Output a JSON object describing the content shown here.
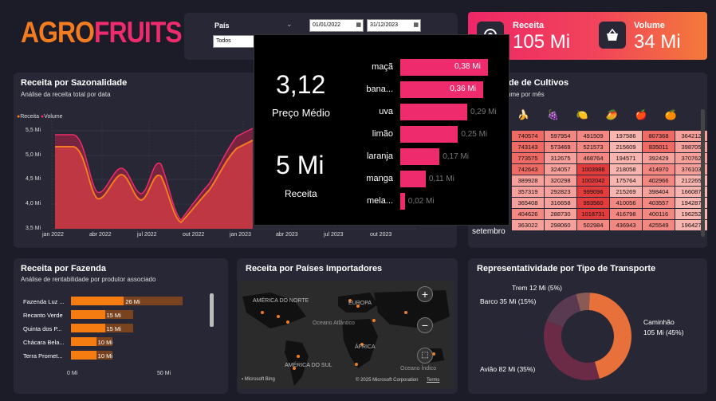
{
  "logo": {
    "part1": "AGRO",
    "part2": "FRUITS"
  },
  "filters": {
    "country_label": "País",
    "country_value": "Todos",
    "date_start": "01/01/2022",
    "date_end": "31/12/2023"
  },
  "kpis": {
    "revenue_label": "Receita",
    "revenue_value": "105 Mi",
    "volume_label": "Volume",
    "volume_value": "34 Mi",
    "revenue_icon": "money-icon",
    "volume_icon": "basket-icon"
  },
  "seasonality": {
    "title": "Receita por Sazonalidade",
    "subtitle": "Análise da receita total por data",
    "legend": [
      "Receita",
      "Volume"
    ],
    "yticks": [
      "5,5 Mi",
      "5,0 Mi",
      "4,5 Mi",
      "4,0 Mi",
      "3,5 Mi"
    ],
    "xticks": [
      "jan 2022",
      "abr 2022",
      "jul 2022",
      "out 2022",
      "jan 2023",
      "abr 2023",
      "jul 2023",
      "out 2023"
    ]
  },
  "tooltip": {
    "avg_price_value": "3,12",
    "avg_price_label": "Preço Médio",
    "revenue_value": "5 Mi",
    "revenue_label": "Receita",
    "items": [
      {
        "label": "maçã",
        "value": "0,38 Mi"
      },
      {
        "label": "bana...",
        "value": "0,36 Mi"
      },
      {
        "label": "uva",
        "value": "0,29 Mi"
      },
      {
        "label": "limão",
        "value": "0,25 Mi"
      },
      {
        "label": "laranja",
        "value": "0,17 Mi"
      },
      {
        "label": "manga",
        "value": "0,11 Mi"
      },
      {
        "label": "mela...",
        "value": "0,02 Mi"
      }
    ]
  },
  "crops": {
    "title": "lidade de Cultivos",
    "subtitle": "o volume por mês",
    "row_label": "setembro",
    "rows": [
      [
        "740574",
        "597954",
        "491509",
        "197586",
        "807368",
        "364212"
      ],
      [
        "743143",
        "573469",
        "521573",
        "215609",
        "835011",
        "398705"
      ],
      [
        "773575",
        "312675",
        "468764",
        "194571",
        "392429",
        "370762"
      ],
      [
        "742643",
        "324057",
        "1003988",
        "218058",
        "414970",
        "376103"
      ],
      [
        "389928",
        "320298",
        "1002042",
        "175764",
        "402966",
        "212265"
      ],
      [
        "357319",
        "292823",
        "999096",
        "215269",
        "398404",
        "166087"
      ],
      [
        "365408",
        "316658",
        "993560",
        "410056",
        "403557",
        "194287"
      ],
      [
        "404626",
        "288730",
        "1018731",
        "416798",
        "400116",
        "196252"
      ],
      [
        "363022",
        "298060",
        "502984",
        "436943",
        "425549",
        "196427"
      ]
    ]
  },
  "farm": {
    "title": "Receita por Fazenda",
    "subtitle": "Análise de rentabilidade por produtor associado",
    "items": [
      {
        "label": "Fazenda Luz ...",
        "value": "26 Mi"
      },
      {
        "label": "Recanto Verde",
        "value": "15 Mi"
      },
      {
        "label": "Quinta dos P...",
        "value": "15 Mi"
      },
      {
        "label": "Chácara Bela...",
        "value": "10 Mi"
      },
      {
        "label": "Terra Promet...",
        "value": "10 Mi"
      }
    ],
    "xticks": [
      "0 Mi",
      "50 Mi"
    ]
  },
  "map": {
    "title": "Receita por Países Importadores",
    "labels": [
      "AMÉRICA DO NORTE",
      "EUROPA",
      "Oceano Atlântico",
      "ÁFRICA",
      "AMÉRICA DO SUL",
      "Oceano Índico"
    ],
    "brand": "Microsoft Bing",
    "copyright": "© 2025 Microsoft Corporation",
    "terms": "Terms"
  },
  "transport": {
    "title": "Representatividade por Tipo de Transporte",
    "labels": {
      "trem": "Trem 12 Mi (5%)",
      "barco": "Barco 35 Mi (15%)",
      "caminhao1": "Caminhão",
      "caminhao2": "105 Mi (45%)",
      "aviao": "Avião 82 Mi (35%)"
    }
  },
  "chart_data": [
    {
      "type": "donut",
      "title": "Representatividade por Tipo de Transporte",
      "categories": [
        "Caminhão",
        "Avião",
        "Barco",
        "Trem"
      ],
      "values": [
        105,
        82,
        35,
        12
      ],
      "percent": [
        45,
        35,
        15,
        5
      ],
      "colors": [
        "#e8703a",
        "#6b2a45",
        "#5a3a50",
        "#8a5a55"
      ]
    },
    {
      "type": "bar",
      "title": "Receita por Fazenda",
      "categories": [
        "Fazenda Luz ...",
        "Recanto Verde",
        "Quinta dos P...",
        "Chácara Bela...",
        "Terra Promet..."
      ],
      "values": [
        26,
        15,
        15,
        10,
        10
      ],
      "xlim": [
        0,
        60
      ]
    },
    {
      "type": "bar",
      "categories": [
        "maçã",
        "bana...",
        "uva",
        "limão",
        "laranja",
        "manga",
        "mela..."
      ],
      "values": [
        0.38,
        0.36,
        0.29,
        0.25,
        0.17,
        0.11,
        0.02
      ]
    }
  ]
}
